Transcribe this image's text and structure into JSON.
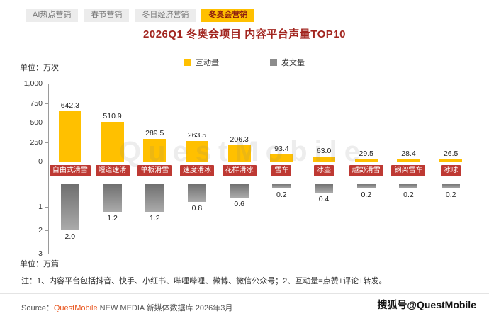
{
  "tabs": {
    "items": [
      {
        "label": "AI热点营销",
        "active": false
      },
      {
        "label": "春节营销",
        "active": false
      },
      {
        "label": "冬日经济营销",
        "active": false
      },
      {
        "label": "冬奥会营销",
        "active": true
      }
    ]
  },
  "chart_data": {
    "type": "bar",
    "title": "2026Q1 冬奥会项目 内容平台声量TOP10",
    "categories": [
      "自由式滑雪",
      "短道速滑",
      "单板滑雪",
      "速度滑冰",
      "花样滑冰",
      "雪车",
      "冰壶",
      "越野滑雪",
      "钢架雪车",
      "冰球"
    ],
    "series": [
      {
        "name": "互动量",
        "unit": "万次",
        "direction": "up",
        "color": "#FFC000",
        "values": [
          642.3,
          510.9,
          289.5,
          263.5,
          206.3,
          93.4,
          63.0,
          29.5,
          28.4,
          26.5
        ]
      },
      {
        "name": "发文量",
        "unit": "万篇",
        "direction": "down",
        "color": "#8C8C8C",
        "values": [
          2.0,
          1.2,
          1.2,
          0.8,
          0.6,
          0.2,
          0.4,
          0.2,
          0.2,
          0.2
        ]
      }
    ],
    "legend": [
      {
        "label": "互动量",
        "color": "#FFC000"
      },
      {
        "label": "发文量",
        "color": "#8C8C8C"
      }
    ],
    "axes": {
      "up": {
        "unit_label": "单位：万次",
        "max": 1000,
        "ticks": [
          {
            "label": "1,000",
            "value": 1000
          },
          {
            "label": "750",
            "value": 750
          },
          {
            "label": "500",
            "value": 500
          },
          {
            "label": "250",
            "value": 250
          },
          {
            "label": "0",
            "value": 0
          }
        ]
      },
      "down": {
        "unit_label": "单位：万篇",
        "max": 3,
        "ticks": [
          {
            "label": "1",
            "value": 1
          },
          {
            "label": "2",
            "value": 2
          },
          {
            "label": "3",
            "value": 3
          }
        ]
      }
    },
    "grid": false,
    "legend_position": "top-center"
  },
  "note": "注：1、内容平台包括抖音、快手、小红书、哔哩哔哩、微博、微信公众号；2、互动量=点赞+评论+转发。",
  "source": {
    "prefix": "Source：",
    "brand": "QuestMobile",
    "rest": " NEW MEDIA 新媒体数据库 2026年3月"
  },
  "watermark": {
    "brand": "QuestMobile",
    "credit": "搜狐号@QuestMobile"
  },
  "colors": {
    "accent_yellow": "#FFC000",
    "bar_gray": "#8C8C8C",
    "title_red": "#A2251F",
    "category_red": "#BE3933",
    "brand_orange": "#E8551E",
    "tab_inactive_bg": "#ECECEC"
  }
}
